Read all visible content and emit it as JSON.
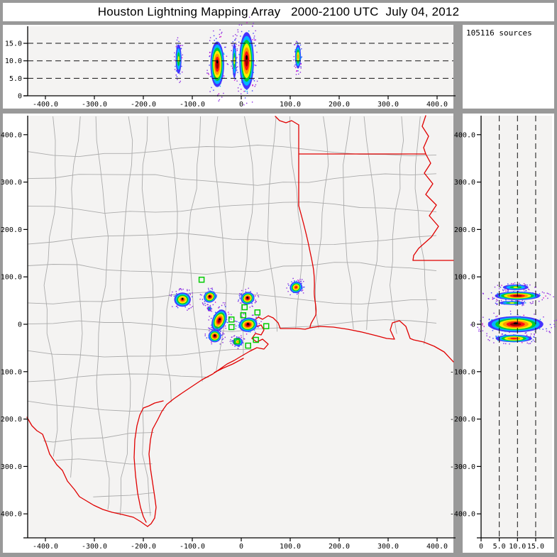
{
  "window": {
    "title": "Houston Lightning Mapping Array   2000-2100 UTC  July 04, 2012"
  },
  "sources_box": {
    "label": "105116 sources"
  },
  "colors": {
    "chrome_gray": "#999999",
    "plot_background": "#f4f3f2",
    "county_line": "#ababab",
    "state_border_red": "#e00000",
    "station_green": "#00cc00",
    "grid_dash_black": "#111111",
    "density_ramp": [
      "#4433ff",
      "#00b4ff",
      "#00cc33",
      "#ffee00",
      "#ff9900",
      "#ff1111",
      "#990000"
    ],
    "speckle": [
      "#8a2be2",
      "#3a3aff",
      "#cc00cc",
      "#00b4ff"
    ]
  },
  "chart_data": [
    {
      "id": "ew_altitude_panel",
      "type": "heatmap",
      "x_ticks": {
        "values": [
          -400,
          -300,
          -200,
          -100,
          0,
          100,
          200,
          300,
          400
        ],
        "labels": [
          "-400.0",
          "-300.0",
          "-200.0",
          "-100.0",
          "0",
          "100.0",
          "200.0",
          "300.0",
          "400.0"
        ]
      },
      "y_ticks": {
        "values": [
          15,
          10,
          5,
          0
        ],
        "labels": [
          "15.0",
          "10.0",
          "5.0",
          "0"
        ]
      },
      "dashed_gridlines_alt_km": [
        5,
        10,
        15
      ],
      "xlim": [
        -435,
        435
      ],
      "ylim": [
        0,
        20
      ],
      "blobs": [
        {
          "x_km": -128,
          "alt_center": 10.5,
          "alt_halfspan": 4.2,
          "halfwidth_km": 6,
          "intensity": 4,
          "black_core": false
        },
        {
          "x_km": -49,
          "alt_center": 9.0,
          "alt_halfspan": 6.5,
          "halfwidth_km": 14,
          "intensity": 7,
          "black_core": true
        },
        {
          "x_km": -14,
          "alt_center": 10.0,
          "alt_halfspan": 5.0,
          "halfwidth_km": 4,
          "intensity": 4,
          "black_core": false
        },
        {
          "x_km": 11,
          "alt_center": 10.0,
          "alt_halfspan": 8.2,
          "halfwidth_km": 15,
          "intensity": 7,
          "black_core": true
        },
        {
          "x_km": 116,
          "alt_center": 11.2,
          "alt_halfspan": 3.4,
          "halfwidth_km": 6,
          "intensity": 5,
          "black_core": false
        }
      ]
    },
    {
      "id": "plan_view_map",
      "type": "heatmap",
      "x_ticks": {
        "values": [
          -400,
          -300,
          -200,
          -100,
          0,
          100,
          200,
          300,
          400
        ],
        "labels": [
          "-400.0",
          "-300.0",
          "-200.0",
          "-100.0",
          "0",
          "100.0",
          "200.0",
          "300.0",
          "400.0"
        ]
      },
      "y_ticks": {
        "values": [
          400,
          300,
          200,
          100,
          0,
          -100,
          -200,
          -300,
          -400
        ],
        "labels": [
          "400.0",
          "300.0",
          "200.0",
          "100.0",
          "0",
          "-100.0",
          "-200.0",
          "-300.0",
          "-400.0"
        ]
      },
      "xlim": [
        -435,
        435
      ],
      "ylim": [
        -450,
        440
      ],
      "cells": [
        {
          "x_km": -120,
          "y_km": 52,
          "rx_km": 17,
          "ry_km": 15,
          "rot": 0,
          "intensity": 6,
          "black_core": true
        },
        {
          "x_km": -64,
          "y_km": 58,
          "rx_km": 13,
          "ry_km": 12,
          "rot": -30,
          "intensity": 7,
          "black_core": true
        },
        {
          "x_km": 13,
          "y_km": 55,
          "rx_km": 14,
          "ry_km": 13,
          "rot": -20,
          "intensity": 7,
          "black_core": true
        },
        {
          "x_km": -45,
          "y_km": 8,
          "rx_km": 14,
          "ry_km": 24,
          "rot": 22,
          "intensity": 7,
          "black_core": true
        },
        {
          "x_km": -54,
          "y_km": -25,
          "rx_km": 13,
          "ry_km": 13,
          "rot": 0,
          "intensity": 7,
          "black_core": true
        },
        {
          "x_km": 14,
          "y_km": -1,
          "rx_km": 19,
          "ry_km": 15,
          "rot": -10,
          "intensity": 7,
          "black_core": true
        },
        {
          "x_km": -7,
          "y_km": -37,
          "rx_km": 10,
          "ry_km": 9,
          "rot": 0,
          "intensity": 5,
          "black_core": false
        },
        {
          "x_km": 112,
          "y_km": 78,
          "rx_km": 13,
          "ry_km": 12,
          "rot": -25,
          "intensity": 6,
          "black_core": false
        },
        {
          "x_km": -65,
          "y_km": 33,
          "rx_km": 3,
          "ry_km": 3,
          "rot": 0,
          "intensity": 3,
          "black_core": false
        }
      ],
      "stations_km": [
        [
          -81,
          94
        ],
        [
          7,
          36
        ],
        [
          33,
          25
        ],
        [
          4,
          19
        ],
        [
          -20,
          10
        ],
        [
          51,
          -4
        ],
        [
          -20,
          -6
        ],
        [
          30,
          -33
        ],
        [
          -9,
          -36
        ],
        [
          14,
          -45
        ]
      ]
    },
    {
      "id": "ns_altitude_panel",
      "type": "heatmap",
      "x_ticks": {
        "values": [
          0,
          5,
          10,
          15
        ],
        "labels": [
          "0",
          "5.0",
          "10.0",
          "15.0"
        ]
      },
      "y_ticks": {
        "values": [
          400,
          300,
          200,
          100,
          0,
          -100,
          -200,
          -300,
          -400
        ],
        "labels": [
          "400.0",
          "300.0",
          "200.0",
          "100.0",
          "0",
          "-100.0",
          "-200.0",
          "-300.0",
          "-400.0"
        ]
      },
      "dashed_gridlines_alt_km": [
        5,
        10,
        15
      ],
      "xlim": [
        0,
        20
      ],
      "ylim": [
        -450,
        440
      ],
      "blobs": [
        {
          "y_km": 78,
          "alt_center": 9.5,
          "alt_halfspan": 3.5,
          "halfheight_km": 6,
          "intensity": 4,
          "black_core": false
        },
        {
          "y_km": 60,
          "alt_center": 10.0,
          "alt_halfspan": 6.2,
          "halfheight_km": 9,
          "intensity": 7,
          "black_core": false
        },
        {
          "y_km": 45,
          "alt_center": 8.5,
          "alt_halfspan": 3.5,
          "halfheight_km": 4,
          "intensity": 4,
          "black_core": false
        },
        {
          "y_km": 0,
          "alt_center": 9.5,
          "alt_halfspan": 7.6,
          "halfheight_km": 17,
          "intensity": 7,
          "black_core": true
        },
        {
          "y_km": -30,
          "alt_center": 9.0,
          "alt_halfspan": 5.0,
          "halfheight_km": 8,
          "intensity": 6,
          "black_core": false
        }
      ]
    }
  ]
}
